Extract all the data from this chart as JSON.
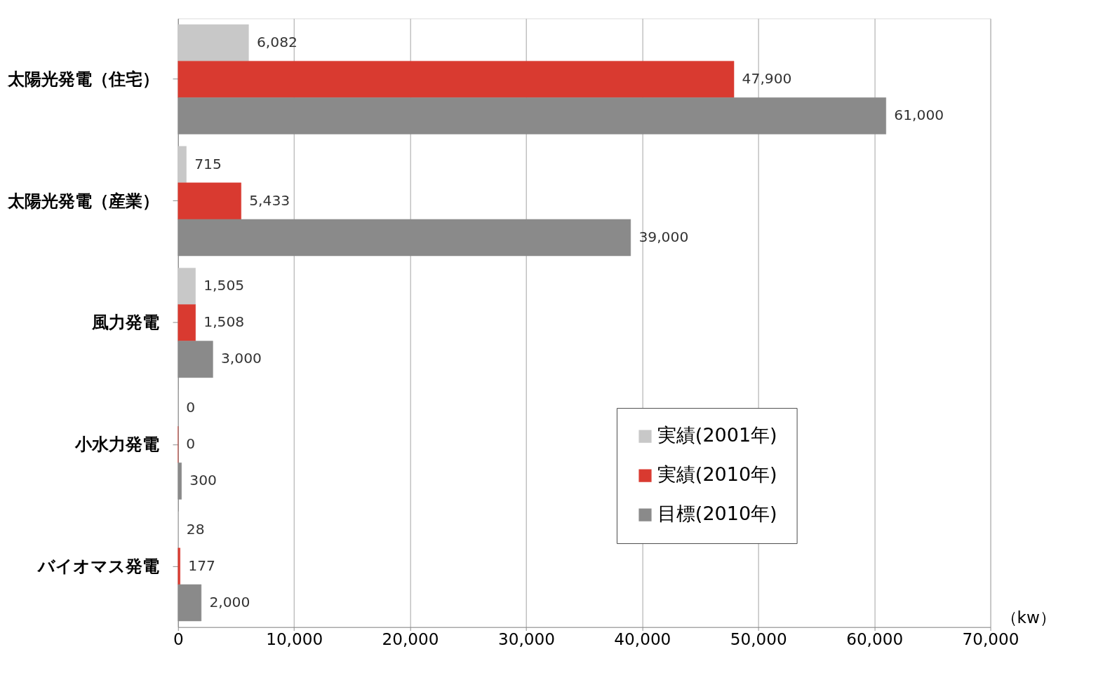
{
  "chart_data": {
    "type": "bar",
    "orientation": "horizontal",
    "xlabel": "（kw）",
    "categories": [
      "太陽光発電（住宅）",
      "太陽光発電（産業）",
      "風力発電",
      "小水力発電",
      "バイオマス発電"
    ],
    "series": [
      {
        "name": "実績(2001年)",
        "color": "#c8c8c8",
        "values": [
          6082,
          715,
          1505,
          0,
          28
        ],
        "value_labels": [
          "6,082",
          "715",
          "1,505",
          "0",
          "28"
        ]
      },
      {
        "name": "実績(2010年)",
        "color": "#d93a30",
        "values": [
          47900,
          5433,
          1508,
          0,
          177
        ],
        "value_labels": [
          "47,900",
          "5,433",
          "1,508",
          "0",
          "177"
        ]
      },
      {
        "name": "目標(2010年)",
        "color": "#8a8a8a",
        "values": [
          61000,
          39000,
          3000,
          300,
          2000
        ],
        "value_labels": [
          "61,000",
          "39,000",
          "3,000",
          "300",
          "2,000"
        ]
      }
    ],
    "xlim": [
      0,
      70000
    ],
    "xticks": [
      0,
      {
        "value": 10000,
        "label": "10,000"
      },
      {
        "value": 20000,
        "label": "20,000"
      },
      {
        "value": 30000,
        "label": "30,000"
      },
      {
        "value": 40000,
        "label": "40,000"
      },
      {
        "value": 50000,
        "label": "50,000"
      },
      {
        "value": 60000,
        "label": "60,000"
      },
      {
        "value": 70000,
        "label": "70,000"
      }
    ],
    "grid": "x",
    "legend": "bottom right"
  }
}
